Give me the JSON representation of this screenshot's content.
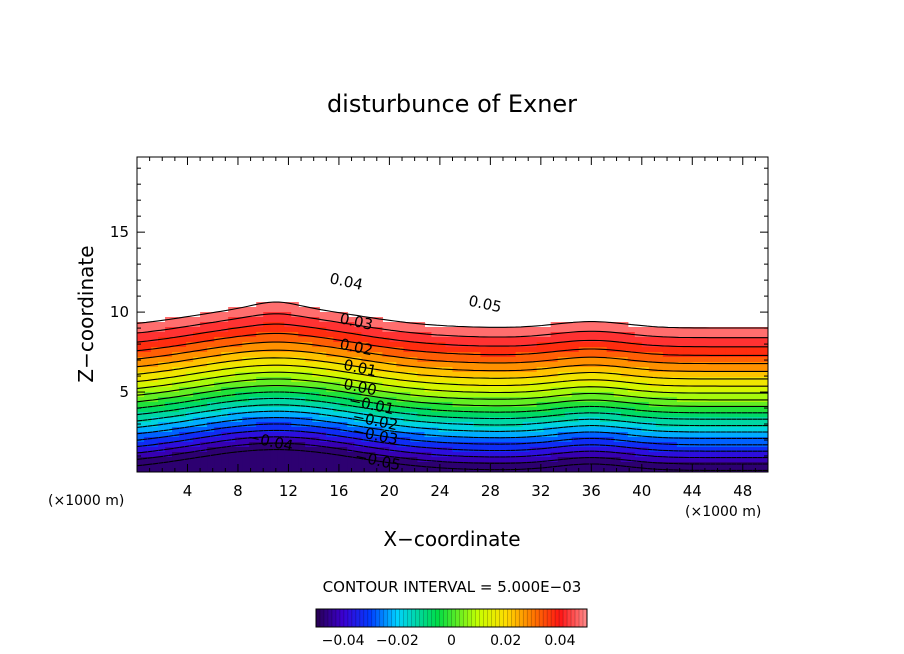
{
  "chart_data": {
    "type": "contour",
    "title": "disturbunce of Exner",
    "xlabel": "X−coordinate",
    "ylabel": "Z−coordinate",
    "x_unit_left": "(×1000 m)",
    "x_unit_right": "(×1000 m)",
    "xlim": [
      0,
      50
    ],
    "ylim": [
      0,
      19.7
    ],
    "x_ticks": [
      4,
      8,
      12,
      16,
      20,
      24,
      28,
      32,
      36,
      40,
      44,
      48
    ],
    "x_tick_labels": [
      "4",
      "8",
      "12",
      "16",
      "20",
      "24",
      "28",
      "32",
      "36",
      "40",
      "44",
      "48"
    ],
    "y_ticks": [
      5,
      10,
      15
    ],
    "y_tick_labels": [
      "5",
      "10",
      "15"
    ],
    "contour_interval_text": "CONTOUR INTERVAL = 5.000E−03",
    "contour_interval": 0.005,
    "levels_min": -0.05,
    "levels_max": 0.05,
    "contour_labels": [
      {
        "text": "0.05",
        "x": 27.5,
        "z": 10.2
      },
      {
        "text": "0.04",
        "x": 16.5,
        "z": 11.6
      },
      {
        "text": "0.03",
        "x": 17.3,
        "z": 9.1
      },
      {
        "text": "0.02",
        "x": 17.3,
        "z": 7.5
      },
      {
        "text": "0.01",
        "x": 17.6,
        "z": 6.2
      },
      {
        "text": "0.00",
        "x": 17.6,
        "z": 5.0
      },
      {
        "text": "−0.01",
        "x": 18.5,
        "z": 3.9
      },
      {
        "text": "−0.02",
        "x": 18.8,
        "z": 2.9
      },
      {
        "text": "−0.03",
        "x": 18.8,
        "z": 2.0
      },
      {
        "text": "−0.04",
        "x": 10.5,
        "z": 1.6
      },
      {
        "text": "−0.05",
        "x": 19.0,
        "z": 0.4
      }
    ],
    "colorbar": {
      "ticks": [
        -0.04,
        -0.02,
        0,
        0.02,
        0.04
      ],
      "tick_labels": [
        "−0.04",
        "−0.02",
        "0",
        "0.02",
        "0.04"
      ]
    }
  }
}
